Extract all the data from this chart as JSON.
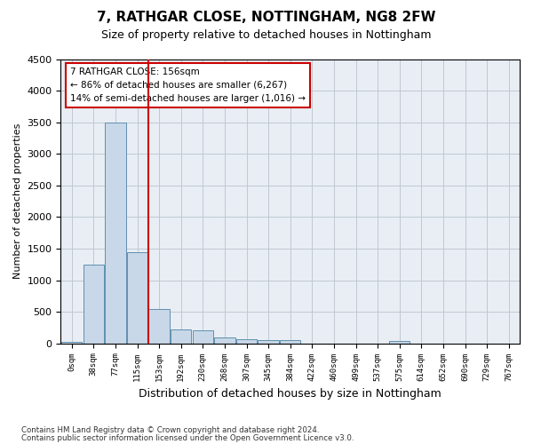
{
  "title": "7, RATHGAR CLOSE, NOTTINGHAM, NG8 2FW",
  "subtitle": "Size of property relative to detached houses in Nottingham",
  "xlabel": "Distribution of detached houses by size in Nottingham",
  "ylabel": "Number of detached properties",
  "bar_color": "#c8d8e8",
  "bar_edge_color": "#6090b0",
  "bin_labels": [
    "0sqm",
    "38sqm",
    "77sqm",
    "115sqm",
    "153sqm",
    "192sqm",
    "230sqm",
    "268sqm",
    "307sqm",
    "345sqm",
    "384sqm",
    "422sqm",
    "460sqm",
    "499sqm",
    "537sqm",
    "575sqm",
    "614sqm",
    "652sqm",
    "690sqm",
    "729sqm",
    "767sqm"
  ],
  "bar_values": [
    30,
    1250,
    3500,
    1450,
    550,
    220,
    200,
    100,
    70,
    50,
    50,
    0,
    0,
    0,
    0,
    40,
    0,
    0,
    0,
    0,
    0
  ],
  "property_label": "7 RATHGAR CLOSE: 156sqm",
  "pct_smaller": 86,
  "n_smaller": 6267,
  "pct_larger": 14,
  "n_larger": 1016,
  "red_line_bin": 4,
  "ylim": [
    0,
    4500
  ],
  "yticks": [
    0,
    500,
    1000,
    1500,
    2000,
    2500,
    3000,
    3500,
    4000,
    4500
  ],
  "annotation_box_color": "#ffffff",
  "annotation_box_edge": "#cc0000",
  "red_line_color": "#cc0000",
  "grid_color": "#c0c8d0",
  "background_color": "#e8eef4",
  "footnote1": "Contains HM Land Registry data © Crown copyright and database right 2024.",
  "footnote2": "Contains public sector information licensed under the Open Government Licence v3.0."
}
